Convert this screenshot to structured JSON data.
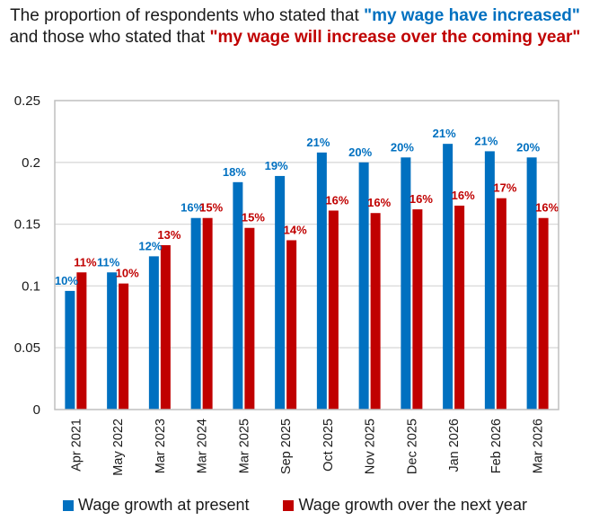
{
  "chart_data": {
    "type": "bar",
    "title_parts": [
      {
        "text": "The proportion of respondents who stated that ",
        "style": "plain"
      },
      {
        "text": "\"my wage have increased\"",
        "style": "blue"
      },
      {
        "text": " and those who stated that ",
        "style": "plain"
      },
      {
        "text": "\"my wage will increase over the coming year\"",
        "style": "red"
      }
    ],
    "categories": [
      "Apr 2021",
      "May 2022",
      "Mar 2023",
      "Mar 2024",
      "Mar 2025",
      "Sep 2025",
      "Oct 2025",
      "Nov 2025",
      "Dec 2025",
      "Jan 2026",
      "Feb 2026",
      "Mar 2026"
    ],
    "series": [
      {
        "name": "Wage growth at present",
        "color": "#0070c0",
        "values": [
          0.096,
          0.111,
          0.124,
          0.155,
          0.184,
          0.189,
          0.208,
          0.2,
          0.204,
          0.215,
          0.209,
          0.204
        ],
        "labels": [
          "10%",
          "11%",
          "12%",
          "16%",
          "18%",
          "19%",
          "21%",
          "20%",
          "20%",
          "21%",
          "21%",
          "20%"
        ]
      },
      {
        "name": "Wage growth over the next year",
        "color": "#c00000",
        "values": [
          0.111,
          0.102,
          0.133,
          0.155,
          0.147,
          0.137,
          0.161,
          0.159,
          0.162,
          0.165,
          0.171,
          0.155
        ],
        "labels": [
          "11%",
          "10%",
          "13%",
          "15%",
          "15%",
          "14%",
          "16%",
          "16%",
          "16%",
          "16%",
          "17%",
          "16%"
        ]
      }
    ],
    "xlabel": "",
    "ylabel": "",
    "ylim": [
      0,
      0.25
    ],
    "yticks": [
      "0",
      "0.05",
      "0.1",
      "0.15",
      "0.2",
      "0.25"
    ],
    "ytick_values": [
      0,
      0.05,
      0.1,
      0.15,
      0.2,
      0.25
    ],
    "grid": true,
    "legend_position": "bottom",
    "gridline_color": "#d9d9d9"
  }
}
